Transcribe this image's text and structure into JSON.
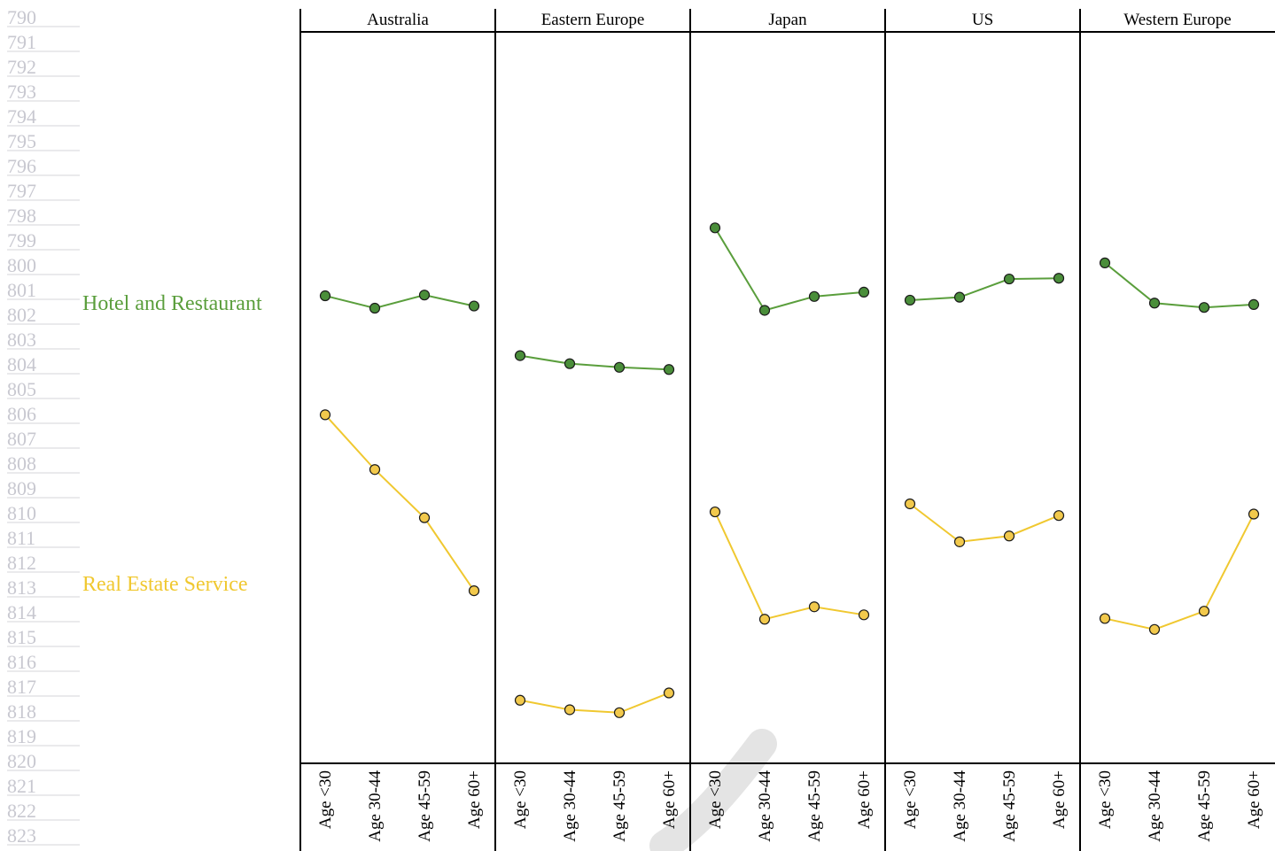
{
  "line_numbers": [
    "790",
    "791",
    "792",
    "793",
    "794",
    "795",
    "796",
    "797",
    "798",
    "799",
    "800",
    "801",
    "802",
    "803",
    "804",
    "805",
    "806",
    "807",
    "808",
    "809",
    "810",
    "811",
    "812",
    "813",
    "814",
    "815",
    "816",
    "817",
    "818",
    "819",
    "820",
    "821",
    "822",
    "823"
  ],
  "chart_data": {
    "type": "line",
    "facet_by": "region",
    "panels": [
      "Australia",
      "Eastern Europe",
      "Japan",
      "US",
      "Western Europe"
    ],
    "categories": [
      "Age <30",
      "Age 30-44",
      "Age 45-59",
      "Age 60+"
    ],
    "ylim": [
      0,
      100
    ],
    "y_axis_shown": false,
    "legend_placement": "left, labels beside lines",
    "series": [
      {
        "name": "Hotel and Restaurant",
        "color": "#5a9e3c",
        "marker_fill": "#4a8e3a",
        "values": {
          "Australia": [
            61.2,
            59.5,
            61.3,
            59.8
          ],
          "Eastern Europe": [
            53.0,
            51.9,
            51.4,
            51.1
          ],
          "Japan": [
            70.5,
            59.2,
            61.1,
            61.7
          ],
          "US": [
            60.6,
            61.0,
            63.5,
            63.6
          ],
          "Western Europe": [
            65.7,
            60.2,
            59.6,
            60.0
          ]
        }
      },
      {
        "name": "Real Estate Service",
        "color": "#f0c830",
        "marker_fill": "#f2c94c",
        "values": {
          "Australia": [
            44.9,
            37.4,
            30.8,
            20.8
          ],
          "Eastern Europe": [
            5.8,
            4.5,
            4.1,
            6.8
          ],
          "Japan": [
            31.6,
            16.9,
            18.6,
            17.5
          ],
          "US": [
            32.7,
            27.5,
            28.3,
            31.1
          ],
          "Western Europe": [
            17.0,
            15.5,
            18.0,
            31.3
          ]
        }
      }
    ]
  }
}
